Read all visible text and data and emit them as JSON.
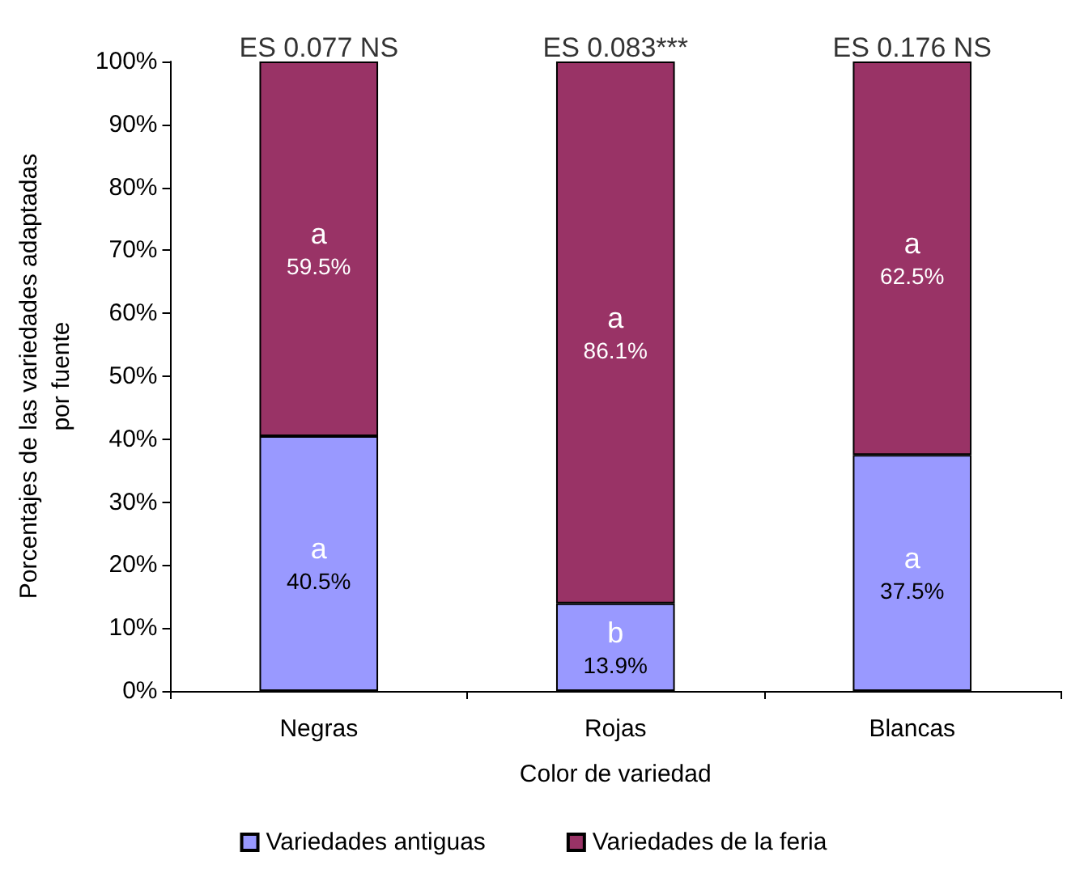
{
  "chart_data": {
    "type": "bar",
    "stacked": true,
    "xlabel": "Color de variedad",
    "ylabel": "Porcentajes de las variedades adaptadas\npor fuente",
    "categories": [
      "Negras",
      "Rojas",
      "Blancas"
    ],
    "series": [
      {
        "name": "Variedades antiguas",
        "color": "#9999ff",
        "values": [
          40.5,
          13.9,
          37.5
        ],
        "value_labels": [
          "a\n40.5%",
          "b\n13.9%",
          "a\n37.5%"
        ]
      },
      {
        "name": "Variedades de la feria",
        "color": "#993366",
        "values": [
          59.5,
          86.1,
          62.5
        ],
        "value_labels": [
          "a\n59.5%",
          "a\n86.1%",
          "a\n62.5%"
        ]
      }
    ],
    "ylim": [
      0,
      100
    ],
    "yticks": [
      {
        "value": 0,
        "label": "0%"
      },
      {
        "value": 10,
        "label": "10%"
      },
      {
        "value": 20,
        "label": "20%"
      },
      {
        "value": 30,
        "label": "30%"
      },
      {
        "value": 40,
        "label": "40%"
      },
      {
        "value": 50,
        "label": "50%"
      },
      {
        "value": 60,
        "label": "60%"
      },
      {
        "value": 70,
        "label": "70%"
      },
      {
        "value": 80,
        "label": "80%"
      },
      {
        "value": 90,
        "label": "90%"
      },
      {
        "value": 100,
        "label": "100%"
      }
    ],
    "annotations": [
      {
        "text": "ES 0.077 NS",
        "x": "Negras",
        "y": 100
      },
      {
        "text": "ES 0.083***",
        "x": "Rojas",
        "y": 100
      },
      {
        "text": "ES 0.176 NS",
        "x": "Blancas",
        "y": 100
      }
    ],
    "grid": false,
    "legend": "bottom"
  }
}
